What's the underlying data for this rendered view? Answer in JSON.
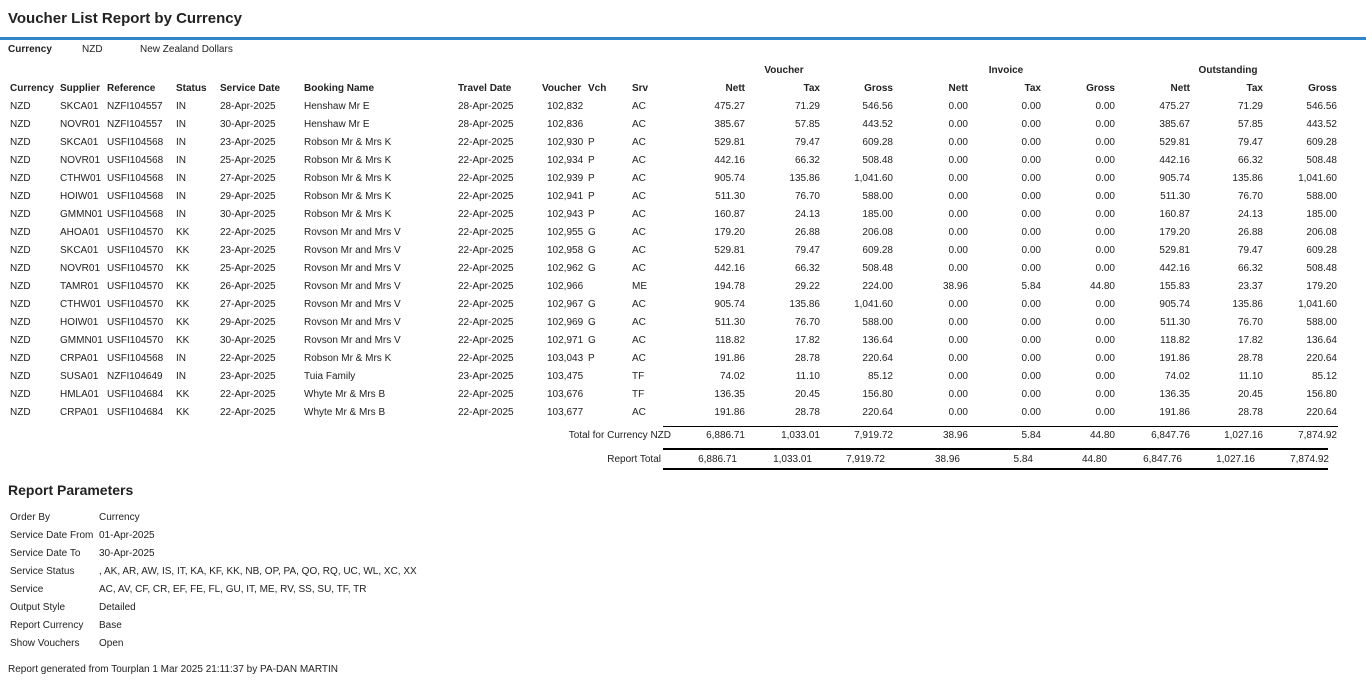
{
  "header": {
    "title": "Voucher List Report by Currency",
    "currency_label": "Currency",
    "currency_code": "NZD",
    "currency_name": "New Zealand Dollars"
  },
  "table": {
    "groups": [
      "Voucher",
      "Invoice",
      "Outstanding"
    ],
    "columns": [
      "Currency",
      "Supplier",
      "Reference",
      "Status",
      "Service Date",
      "Booking Name",
      "Travel Date",
      "Voucher",
      "Vch",
      "Srv",
      "Nett",
      "Tax",
      "Gross",
      "Nett",
      "Tax",
      "Gross",
      "Nett",
      "Tax",
      "Gross"
    ],
    "rows": [
      [
        "NZD",
        "SKCA01",
        "NZFI104557",
        "IN",
        "28-Apr-2025",
        "Henshaw Mr E",
        "28-Apr-2025",
        "102,832",
        null,
        "AC",
        "475.27",
        "71.29",
        "546.56",
        "0.00",
        "0.00",
        "0.00",
        "475.27",
        "71.29",
        "546.56"
      ],
      [
        "NZD",
        "NOVR01",
        "NZFI104557",
        "IN",
        "30-Apr-2025",
        "Henshaw Mr E",
        "28-Apr-2025",
        "102,836",
        null,
        "AC",
        "385.67",
        "57.85",
        "443.52",
        "0.00",
        "0.00",
        "0.00",
        "385.67",
        "57.85",
        "443.52"
      ],
      [
        "NZD",
        "SKCA01",
        "USFI104568",
        "IN",
        "23-Apr-2025",
        "Robson Mr & Mrs K",
        "22-Apr-2025",
        "102,930",
        "P",
        "AC",
        "529.81",
        "79.47",
        "609.28",
        "0.00",
        "0.00",
        "0.00",
        "529.81",
        "79.47",
        "609.28"
      ],
      [
        "NZD",
        "NOVR01",
        "USFI104568",
        "IN",
        "25-Apr-2025",
        "Robson Mr & Mrs K",
        "22-Apr-2025",
        "102,934",
        "P",
        "AC",
        "442.16",
        "66.32",
        "508.48",
        "0.00",
        "0.00",
        "0.00",
        "442.16",
        "66.32",
        "508.48"
      ],
      [
        "NZD",
        "CTHW01",
        "USFI104568",
        "IN",
        "27-Apr-2025",
        "Robson Mr & Mrs K",
        "22-Apr-2025",
        "102,939",
        "P",
        "AC",
        "905.74",
        "135.86",
        "1,041.60",
        "0.00",
        "0.00",
        "0.00",
        "905.74",
        "135.86",
        "1,041.60"
      ],
      [
        "NZD",
        "HOIW01",
        "USFI104568",
        "IN",
        "29-Apr-2025",
        "Robson Mr & Mrs K",
        "22-Apr-2025",
        "102,941",
        "P",
        "AC",
        "511.30",
        "76.70",
        "588.00",
        "0.00",
        "0.00",
        "0.00",
        "511.30",
        "76.70",
        "588.00"
      ],
      [
        "NZD",
        "GMMN01",
        "USFI104568",
        "IN",
        "30-Apr-2025",
        "Robson Mr & Mrs K",
        "22-Apr-2025",
        "102,943",
        "P",
        "AC",
        "160.87",
        "24.13",
        "185.00",
        "0.00",
        "0.00",
        "0.00",
        "160.87",
        "24.13",
        "185.00"
      ],
      [
        "NZD",
        "AHOA01",
        "USFI104570",
        "KK",
        "22-Apr-2025",
        "Rovson Mr and Mrs V",
        "22-Apr-2025",
        "102,955",
        "G",
        "AC",
        "179.20",
        "26.88",
        "206.08",
        "0.00",
        "0.00",
        "0.00",
        "179.20",
        "26.88",
        "206.08"
      ],
      [
        "NZD",
        "SKCA01",
        "USFI104570",
        "KK",
        "23-Apr-2025",
        "Rovson Mr and Mrs V",
        "22-Apr-2025",
        "102,958",
        "G",
        "AC",
        "529.81",
        "79.47",
        "609.28",
        "0.00",
        "0.00",
        "0.00",
        "529.81",
        "79.47",
        "609.28"
      ],
      [
        "NZD",
        "NOVR01",
        "USFI104570",
        "KK",
        "25-Apr-2025",
        "Rovson Mr and Mrs V",
        "22-Apr-2025",
        "102,962",
        "G",
        "AC",
        "442.16",
        "66.32",
        "508.48",
        "0.00",
        "0.00",
        "0.00",
        "442.16",
        "66.32",
        "508.48"
      ],
      [
        "NZD",
        "TAMR01",
        "USFI104570",
        "KK",
        "26-Apr-2025",
        "Rovson Mr and Mrs V",
        "22-Apr-2025",
        "102,966",
        null,
        "ME",
        "194.78",
        "29.22",
        "224.00",
        "38.96",
        "5.84",
        "44.80",
        "155.83",
        "23.37",
        "179.20"
      ],
      [
        "NZD",
        "CTHW01",
        "USFI104570",
        "KK",
        "27-Apr-2025",
        "Rovson Mr and Mrs V",
        "22-Apr-2025",
        "102,967",
        "G",
        "AC",
        "905.74",
        "135.86",
        "1,041.60",
        "0.00",
        "0.00",
        "0.00",
        "905.74",
        "135.86",
        "1,041.60"
      ],
      [
        "NZD",
        "HOIW01",
        "USFI104570",
        "KK",
        "29-Apr-2025",
        "Rovson Mr and Mrs V",
        "22-Apr-2025",
        "102,969",
        "G",
        "AC",
        "511.30",
        "76.70",
        "588.00",
        "0.00",
        "0.00",
        "0.00",
        "511.30",
        "76.70",
        "588.00"
      ],
      [
        "NZD",
        "GMMN01",
        "USFI104570",
        "KK",
        "30-Apr-2025",
        "Rovson Mr and Mrs V",
        "22-Apr-2025",
        "102,971",
        "G",
        "AC",
        "118.82",
        "17.82",
        "136.64",
        "0.00",
        "0.00",
        "0.00",
        "118.82",
        "17.82",
        "136.64"
      ],
      [
        "NZD",
        "CRPA01",
        "USFI104568",
        "IN",
        "22-Apr-2025",
        "Robson Mr & Mrs K",
        "22-Apr-2025",
        "103,043",
        "P",
        "AC",
        "191.86",
        "28.78",
        "220.64",
        "0.00",
        "0.00",
        "0.00",
        "191.86",
        "28.78",
        "220.64"
      ],
      [
        "NZD",
        "SUSA01",
        "NZFI104649",
        "IN",
        "23-Apr-2025",
        "Tuia Family",
        "23-Apr-2025",
        "103,475",
        null,
        "TF",
        "74.02",
        "11.10",
        "85.12",
        "0.00",
        "0.00",
        "0.00",
        "74.02",
        "11.10",
        "85.12"
      ],
      [
        "NZD",
        "HMLA01",
        "USFI104684",
        "KK",
        "22-Apr-2025",
        "Whyte Mr & Mrs B",
        "22-Apr-2025",
        "103,676",
        null,
        "TF",
        "136.35",
        "20.45",
        "156.80",
        "0.00",
        "0.00",
        "0.00",
        "136.35",
        "20.45",
        "156.80"
      ],
      [
        "NZD",
        "CRPA01",
        "USFI104684",
        "KK",
        "22-Apr-2025",
        "Whyte Mr & Mrs B",
        "22-Apr-2025",
        "103,677",
        null,
        "AC",
        "191.86",
        "28.78",
        "220.64",
        "0.00",
        "0.00",
        "0.00",
        "191.86",
        "28.78",
        "220.64"
      ]
    ],
    "totals": [
      {
        "label": "Total for Currency NZD",
        "values": [
          "6,886.71",
          "1,033.01",
          "7,919.72",
          "38.96",
          "5.84",
          "44.80",
          "6,847.76",
          "1,027.16",
          "7,874.92"
        ]
      },
      {
        "label": "Report Total",
        "values": [
          "6,886.71",
          "1,033.01",
          "7,919.72",
          "38.96",
          "5.84",
          "44.80",
          "6,847.76",
          "1,027.16",
          "7,874.92"
        ]
      }
    ]
  },
  "parameters": {
    "title": "Report Parameters",
    "items": [
      [
        "Order By",
        "Currency"
      ],
      [
        "Service Date From",
        "01-Apr-2025"
      ],
      [
        "Service Date To",
        "30-Apr-2025"
      ],
      [
        "Service Status",
        ", AK, AR, AW, IS, IT, KA, KF, KK, NB, OP, PA, QO, RQ, UC, WL, XC, XX"
      ],
      [
        "Service",
        "AC, AV, CF, CR, EF, FE, FL, GU, IT, ME, RV, SS, SU, TF, TR"
      ],
      [
        "Output Style",
        "Detailed"
      ],
      [
        "Report Currency",
        "Base"
      ],
      [
        "Show Vouchers",
        "Open"
      ]
    ]
  },
  "footer": "Report generated from Tourplan 1 Mar 2025 21:11:37 by PA-DAN MARTIN"
}
